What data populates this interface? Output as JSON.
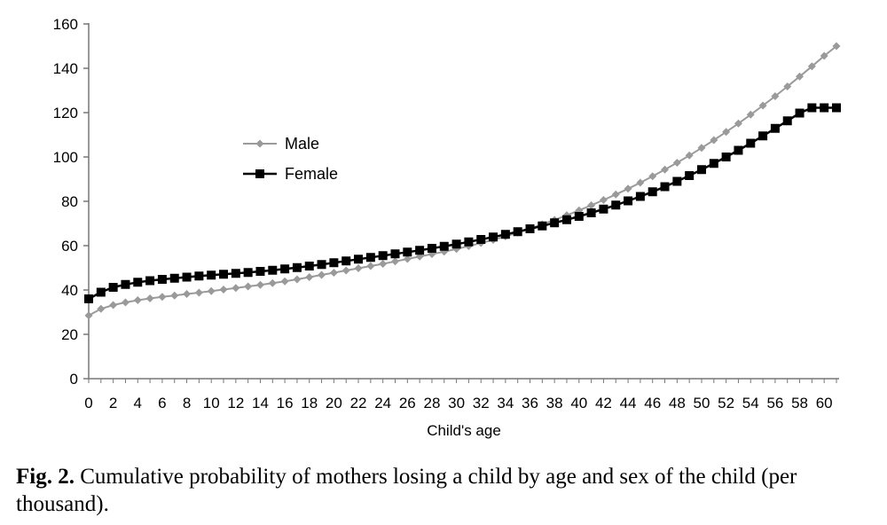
{
  "chart_data": {
    "type": "line",
    "title": "",
    "xlabel": "Child's age",
    "ylabel": "",
    "xlim": [
      0,
      61
    ],
    "ylim": [
      0,
      160
    ],
    "x_ticks": [
      "0",
      "2",
      "4",
      "6",
      "8",
      "10",
      "12",
      "14",
      "16",
      "18",
      "20",
      "22",
      "24",
      "26",
      "28",
      "30",
      "32",
      "34",
      "36",
      "38",
      "40",
      "42",
      "44",
      "46",
      "48",
      "50",
      "52",
      "54",
      "56",
      "58",
      "60"
    ],
    "y_ticks": [
      "0",
      "20",
      "40",
      "60",
      "80",
      "100",
      "120",
      "140",
      "160"
    ],
    "grid": false,
    "legend": "center-left",
    "x": [
      0,
      1,
      2,
      3,
      4,
      5,
      6,
      7,
      8,
      9,
      10,
      11,
      12,
      13,
      14,
      15,
      16,
      17,
      18,
      19,
      20,
      21,
      22,
      23,
      24,
      25,
      26,
      27,
      28,
      29,
      30,
      31,
      32,
      33,
      34,
      35,
      36,
      37,
      38,
      39,
      40,
      41,
      42,
      43,
      44,
      45,
      46,
      47,
      48,
      49,
      50,
      51,
      52,
      53,
      54,
      55,
      56,
      57,
      58,
      59,
      60,
      61
    ],
    "series": [
      {
        "name": "Male",
        "color": "#9a9a9a",
        "marker": "diamond",
        "values": [
          28.5,
          31.5,
          33.2,
          34.4,
          35.4,
          36.2,
          36.9,
          37.5,
          38.2,
          38.8,
          39.5,
          40.2,
          40.9,
          41.6,
          42.3,
          43.1,
          43.9,
          44.8,
          45.8,
          46.8,
          47.8,
          48.8,
          49.8,
          50.8,
          51.8,
          52.9,
          54.0,
          55.1,
          56.2,
          57.3,
          58.5,
          59.8,
          61.2,
          62.6,
          64.2,
          65.9,
          67.7,
          69.6,
          71.6,
          73.7,
          75.9,
          78.2,
          80.6,
          83.1,
          85.7,
          88.4,
          91.3,
          94.3,
          97.4,
          100.7,
          104.1,
          107.6,
          111.3,
          115.1,
          119.1,
          123.2,
          127.4,
          131.8,
          136.3,
          140.9,
          145.6,
          150.0
        ]
      },
      {
        "name": "Female",
        "color": "#000000",
        "marker": "square",
        "values": [
          36.0,
          39.0,
          41.2,
          42.5,
          43.5,
          44.2,
          44.8,
          45.3,
          45.8,
          46.3,
          46.7,
          47.1,
          47.5,
          47.9,
          48.4,
          48.9,
          49.5,
          50.1,
          50.8,
          51.5,
          52.3,
          53.1,
          53.9,
          54.7,
          55.5,
          56.3,
          57.1,
          57.9,
          58.8,
          59.7,
          60.7,
          61.7,
          62.8,
          63.9,
          65.1,
          66.3,
          67.6,
          68.9,
          70.3,
          71.7,
          73.2,
          74.8,
          76.5,
          78.3,
          80.2,
          82.2,
          84.3,
          86.6,
          89.0,
          91.6,
          94.3,
          97.1,
          100.0,
          103.0,
          106.2,
          109.5,
          112.9,
          116.3,
          119.8,
          122.2,
          122.2,
          122.2
        ]
      }
    ]
  },
  "caption": {
    "label": "Fig. 2.",
    "text": " Cumulative probability of mothers losing a child by age and sex of the child (per thousand)."
  }
}
